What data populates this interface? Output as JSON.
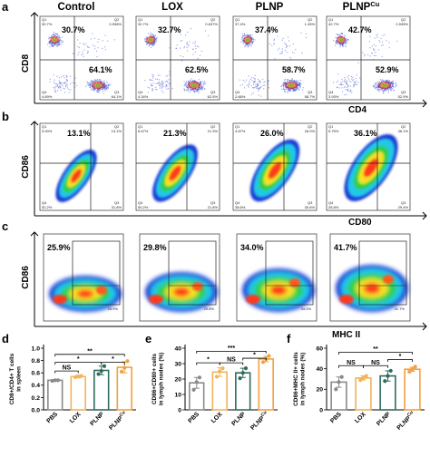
{
  "panel_labels": {
    "a": "a",
    "b": "b",
    "c": "c",
    "d": "d",
    "e": "e",
    "f": "f"
  },
  "groups": [
    "Control",
    "LOX",
    "PLNP",
    "PLNP"
  ],
  "groups_sup": [
    "",
    "",
    "",
    "Cu"
  ],
  "flow_a": {
    "ylabel": "CD8",
    "xlabel": "CD4",
    "plots": [
      {
        "q1": "30.7%",
        "q3": "64.1%",
        "q1s": "30.7%",
        "q2s": "0.536%",
        "q4s": "4.69%",
        "q3s": "64.1%"
      },
      {
        "q1": "32.7%",
        "q3": "62.5%",
        "q1s": "32.7%",
        "q2s": "0.637%",
        "q4s": "4.34%",
        "q3s": "62.5%"
      },
      {
        "q1": "37.4%",
        "q3": "58.7%",
        "q1s": "37.4%",
        "q2s": "1.26%",
        "q4s": "2.66%",
        "q3s": "58.7%"
      },
      {
        "q1": "42.7%",
        "q3": "52.9%",
        "q1s": "42.7%",
        "q2s": "0.535%",
        "q4s": "3.93%",
        "q3s": "52.9%"
      }
    ],
    "q_names": [
      "Q1",
      "Q2",
      "Q3",
      "Q4"
    ]
  },
  "flow_b": {
    "ylabel": "CD86",
    "xlabel": "CD80",
    "plots": [
      {
        "q2": "13.1%",
        "q1s": "3.00%",
        "q2s": "13.1%",
        "q4s": "52.2%",
        "q3s": "31.8%"
      },
      {
        "q2": "21.3%",
        "q1s": "6.67%",
        "q2s": "21.3%",
        "q4s": "50.2%",
        "q3s": "21.8%"
      },
      {
        "q2": "26.0%",
        "q1s": "4.87%",
        "q2s": "26.0%",
        "q4s": "38.6%",
        "q3s": "30.6%"
      },
      {
        "q2": "36.1%",
        "q1s": "5.75%",
        "q2s": "36.1%",
        "q4s": "28.8%",
        "q3s": "29.4%"
      }
    ],
    "q_names": [
      "Q1",
      "Q2",
      "Q3",
      "Q4"
    ]
  },
  "flow_c": {
    "ylabel": "CD86",
    "xlabel": "MHC II",
    "plots": [
      {
        "gate": "25.9%",
        "small": "25.9%"
      },
      {
        "gate": "29.8%",
        "small": "29.8%"
      },
      {
        "gate": "34.0%",
        "small": "34.0%"
      },
      {
        "gate": "41.7%",
        "small": "41.7%"
      }
    ]
  },
  "bar_categories": [
    "PBS",
    "LOX",
    "PLNP",
    "PLNP"
  ],
  "bar_categories_sup": [
    "",
    "",
    "",
    "Cu"
  ],
  "bar_colors": [
    "#8a8a8a",
    "#f2b35a",
    "#2e6b5e",
    "#f2a13d"
  ],
  "chart_data": [
    {
      "panel": "d",
      "type": "bar",
      "categories": [
        "PBS",
        "LOX",
        "PLNP",
        "PLNPCu"
      ],
      "ylabel_line1": "CD8+/CD4+ T cells",
      "ylabel_line2": "in spleen",
      "ylim": [
        0.0,
        1.0
      ],
      "yticks": [
        "0.0",
        "0.2",
        "0.4",
        "0.6",
        "0.8",
        "1.0"
      ],
      "yticks_num": [
        0.0,
        0.2,
        0.4,
        0.6,
        0.8,
        1.0
      ],
      "values": [
        0.48,
        0.54,
        0.64,
        0.69
      ],
      "errors": [
        0.01,
        0.02,
        0.07,
        0.09
      ],
      "points": [
        [
          0.47,
          0.48,
          0.48
        ],
        [
          0.53,
          0.54,
          0.55
        ],
        [
          0.58,
          0.63,
          0.71
        ],
        [
          0.62,
          0.68,
          0.79
        ]
      ],
      "significance": [
        {
          "from": 0,
          "to": 1,
          "label": "NS",
          "y": 0.63
        },
        {
          "from": 0,
          "to": 2,
          "label": "*",
          "y": 0.77
        },
        {
          "from": 2,
          "to": 3,
          "label": "*",
          "y": 0.77
        },
        {
          "from": 0,
          "to": 3,
          "label": "**",
          "y": 0.9
        }
      ]
    },
    {
      "panel": "e",
      "type": "bar",
      "categories": [
        "PBS",
        "LOX",
        "PLNP",
        "PLNPCu"
      ],
      "ylabel_line1": "CD86+CD80+ cells",
      "ylabel_line2": "in lymph nodes (%)",
      "ylim": [
        0,
        40
      ],
      "yticks": [
        "0",
        "10",
        "20",
        "30",
        "40"
      ],
      "yticks_num": [
        0,
        10,
        20,
        30,
        40
      ],
      "values": [
        17.5,
        24.5,
        24.0,
        33.0
      ],
      "errors": [
        3.5,
        2.8,
        3.0,
        1.8
      ],
      "points": [
        [
          13,
          18,
          21
        ],
        [
          21.5,
          25,
          27
        ],
        [
          20.5,
          24,
          27
        ],
        [
          31,
          33,
          35
        ]
      ],
      "significance": [
        {
          "from": 0,
          "to": 1,
          "label": "*",
          "y": 30.5
        },
        {
          "from": 1,
          "to": 2,
          "label": "NS",
          "y": 30.5
        },
        {
          "from": 2,
          "to": 3,
          "label": "*",
          "y": 33.5
        },
        {
          "from": 0,
          "to": 3,
          "label": "***",
          "y": 38
        }
      ]
    },
    {
      "panel": "f",
      "type": "bar",
      "categories": [
        "PBS",
        "LOX",
        "PLNP",
        "PLNPCu"
      ],
      "ylabel_line1": "CD86+MHC II+ cells",
      "ylabel_line2": "in lymph nodes (%)",
      "ylim": [
        0,
        60
      ],
      "yticks": [
        "0",
        "20",
        "40",
        "60"
      ],
      "yticks_num": [
        0,
        20,
        40,
        60
      ],
      "values": [
        27,
        31,
        33,
        39.5
      ],
      "errors": [
        5,
        2,
        5,
        2
      ],
      "points": [
        [
          20,
          27,
          32
        ],
        [
          29,
          31,
          33
        ],
        [
          28,
          33,
          38
        ],
        [
          37,
          39.5,
          42
        ]
      ],
      "significance": [
        {
          "from": 0,
          "to": 1,
          "label": "NS",
          "y": 43
        },
        {
          "from": 1,
          "to": 2,
          "label": "NS",
          "y": 43
        },
        {
          "from": 2,
          "to": 3,
          "label": "*",
          "y": 49
        },
        {
          "from": 0,
          "to": 3,
          "label": "**",
          "y": 56
        }
      ]
    }
  ]
}
